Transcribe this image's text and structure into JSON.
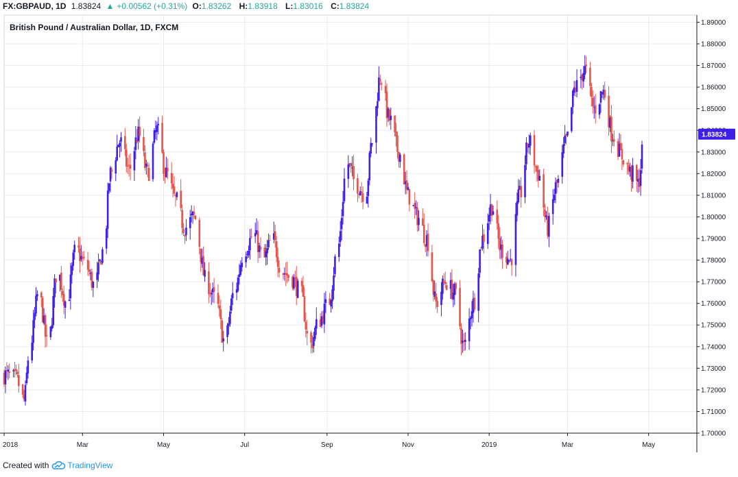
{
  "header": {
    "symbol": "FX:GBPAUD, 1D",
    "last": "1.83824",
    "change_arrow": "▲",
    "change": "+0.00562 (+0.31%)",
    "o_label": "O:",
    "o_val": "1.83262",
    "h_label": "H:",
    "h_val": "1.83918",
    "l_label": "L:",
    "l_val": "1.83016",
    "c_label": "C:",
    "c_val": "1.83824"
  },
  "footer": {
    "created_with": "Created with",
    "brand": "TradingView",
    "brand_icon": "tradingview-cloud-icon"
  },
  "colors": {
    "up": "#3d1fe8",
    "down": "#e8534a",
    "grid": "#e8ecf0",
    "price_badge": "#3d1fe8"
  },
  "chart_data": {
    "type": "candlestick",
    "title": "British Pound / Australian Dollar, 1D, FXCM",
    "ylim": [
      1.7,
      1.8933
    ],
    "y_ticks": [
      "1.70000",
      "1.71000",
      "1.72000",
      "1.73000",
      "1.74000",
      "1.75000",
      "1.76000",
      "1.77000",
      "1.78000",
      "1.79000",
      "1.80000",
      "1.81000",
      "1.82000",
      "1.83000",
      "1.84000",
      "1.85000",
      "1.86000",
      "1.87000",
      "1.88000",
      "1.89000"
    ],
    "x_ticks": [
      {
        "label": "2018",
        "date": "2018-01-01"
      },
      {
        "label": "Mar",
        "date": "2018-03-01"
      },
      {
        "label": "May",
        "date": "2018-05-01"
      },
      {
        "label": "Jul",
        "date": "2018-07-01"
      },
      {
        "label": "Sep",
        "date": "2018-09-01"
      },
      {
        "label": "Nov",
        "date": "2018-11-01"
      },
      {
        "label": "2019",
        "date": "2019-01-01"
      },
      {
        "label": "Mar",
        "date": "2019-03-01"
      },
      {
        "label": "May",
        "date": "2019-05-01"
      }
    ],
    "xlim": [
      "2018-01-01",
      "2019-06-10"
    ],
    "current_price": "1.83824",
    "grid": true,
    "close_path": [
      [
        "2018-01-01",
        1.727
      ],
      [
        "2018-01-10",
        1.725
      ],
      [
        "2018-01-16",
        1.715
      ],
      [
        "2018-01-20",
        1.738
      ],
      [
        "2018-01-27",
        1.765
      ],
      [
        "2018-02-03",
        1.74
      ],
      [
        "2018-02-10",
        1.775
      ],
      [
        "2018-02-17",
        1.76
      ],
      [
        "2018-02-24",
        1.785
      ],
      [
        "2018-03-03",
        1.778
      ],
      [
        "2018-03-10",
        1.768
      ],
      [
        "2018-03-17",
        1.785
      ],
      [
        "2018-03-22",
        1.82
      ],
      [
        "2018-03-29",
        1.835
      ],
      [
        "2018-04-05",
        1.822
      ],
      [
        "2018-04-12",
        1.838
      ],
      [
        "2018-04-19",
        1.82
      ],
      [
        "2018-04-26",
        1.84
      ],
      [
        "2018-05-03",
        1.82
      ],
      [
        "2018-05-10",
        1.808
      ],
      [
        "2018-05-17",
        1.795
      ],
      [
        "2018-05-24",
        1.8
      ],
      [
        "2018-06-02",
        1.77
      ],
      [
        "2018-06-09",
        1.762
      ],
      [
        "2018-06-16",
        1.742
      ],
      [
        "2018-06-23",
        1.765
      ],
      [
        "2018-07-01",
        1.785
      ],
      [
        "2018-07-08",
        1.792
      ],
      [
        "2018-07-15",
        1.78
      ],
      [
        "2018-07-22",
        1.79
      ],
      [
        "2018-07-29",
        1.775
      ],
      [
        "2018-08-05",
        1.772
      ],
      [
        "2018-08-12",
        1.765
      ],
      [
        "2018-08-19",
        1.74
      ],
      [
        "2018-08-26",
        1.752
      ],
      [
        "2018-09-02",
        1.76
      ],
      [
        "2018-09-09",
        1.785
      ],
      [
        "2018-09-16",
        1.825
      ],
      [
        "2018-09-23",
        1.815
      ],
      [
        "2018-09-30",
        1.81
      ],
      [
        "2018-10-05",
        1.835
      ],
      [
        "2018-10-11",
        1.865
      ],
      [
        "2018-10-18",
        1.845
      ],
      [
        "2018-10-25",
        1.83
      ],
      [
        "2018-11-01",
        1.81
      ],
      [
        "2018-11-08",
        1.8
      ],
      [
        "2018-11-15",
        1.79
      ],
      [
        "2018-11-22",
        1.76
      ],
      [
        "2018-11-29",
        1.77
      ],
      [
        "2018-12-06",
        1.765
      ],
      [
        "2018-12-13",
        1.74
      ],
      [
        "2018-12-20",
        1.76
      ],
      [
        "2018-12-27",
        1.79
      ],
      [
        "2019-01-03",
        1.805
      ],
      [
        "2019-01-10",
        1.785
      ],
      [
        "2019-01-17",
        1.78
      ],
      [
        "2019-01-24",
        1.81
      ],
      [
        "2019-01-31",
        1.835
      ],
      [
        "2019-02-07",
        1.82
      ],
      [
        "2019-02-14",
        1.795
      ],
      [
        "2019-02-21",
        1.815
      ],
      [
        "2019-02-28",
        1.835
      ],
      [
        "2019-03-07",
        1.86
      ],
      [
        "2019-03-14",
        1.868
      ],
      [
        "2019-03-21",
        1.85
      ],
      [
        "2019-03-28",
        1.858
      ],
      [
        "2019-04-04",
        1.838
      ],
      [
        "2019-04-11",
        1.828
      ],
      [
        "2019-04-18",
        1.82
      ],
      [
        "2019-04-23",
        1.815
      ],
      [
        "2019-04-28",
        1.838
      ]
    ]
  }
}
